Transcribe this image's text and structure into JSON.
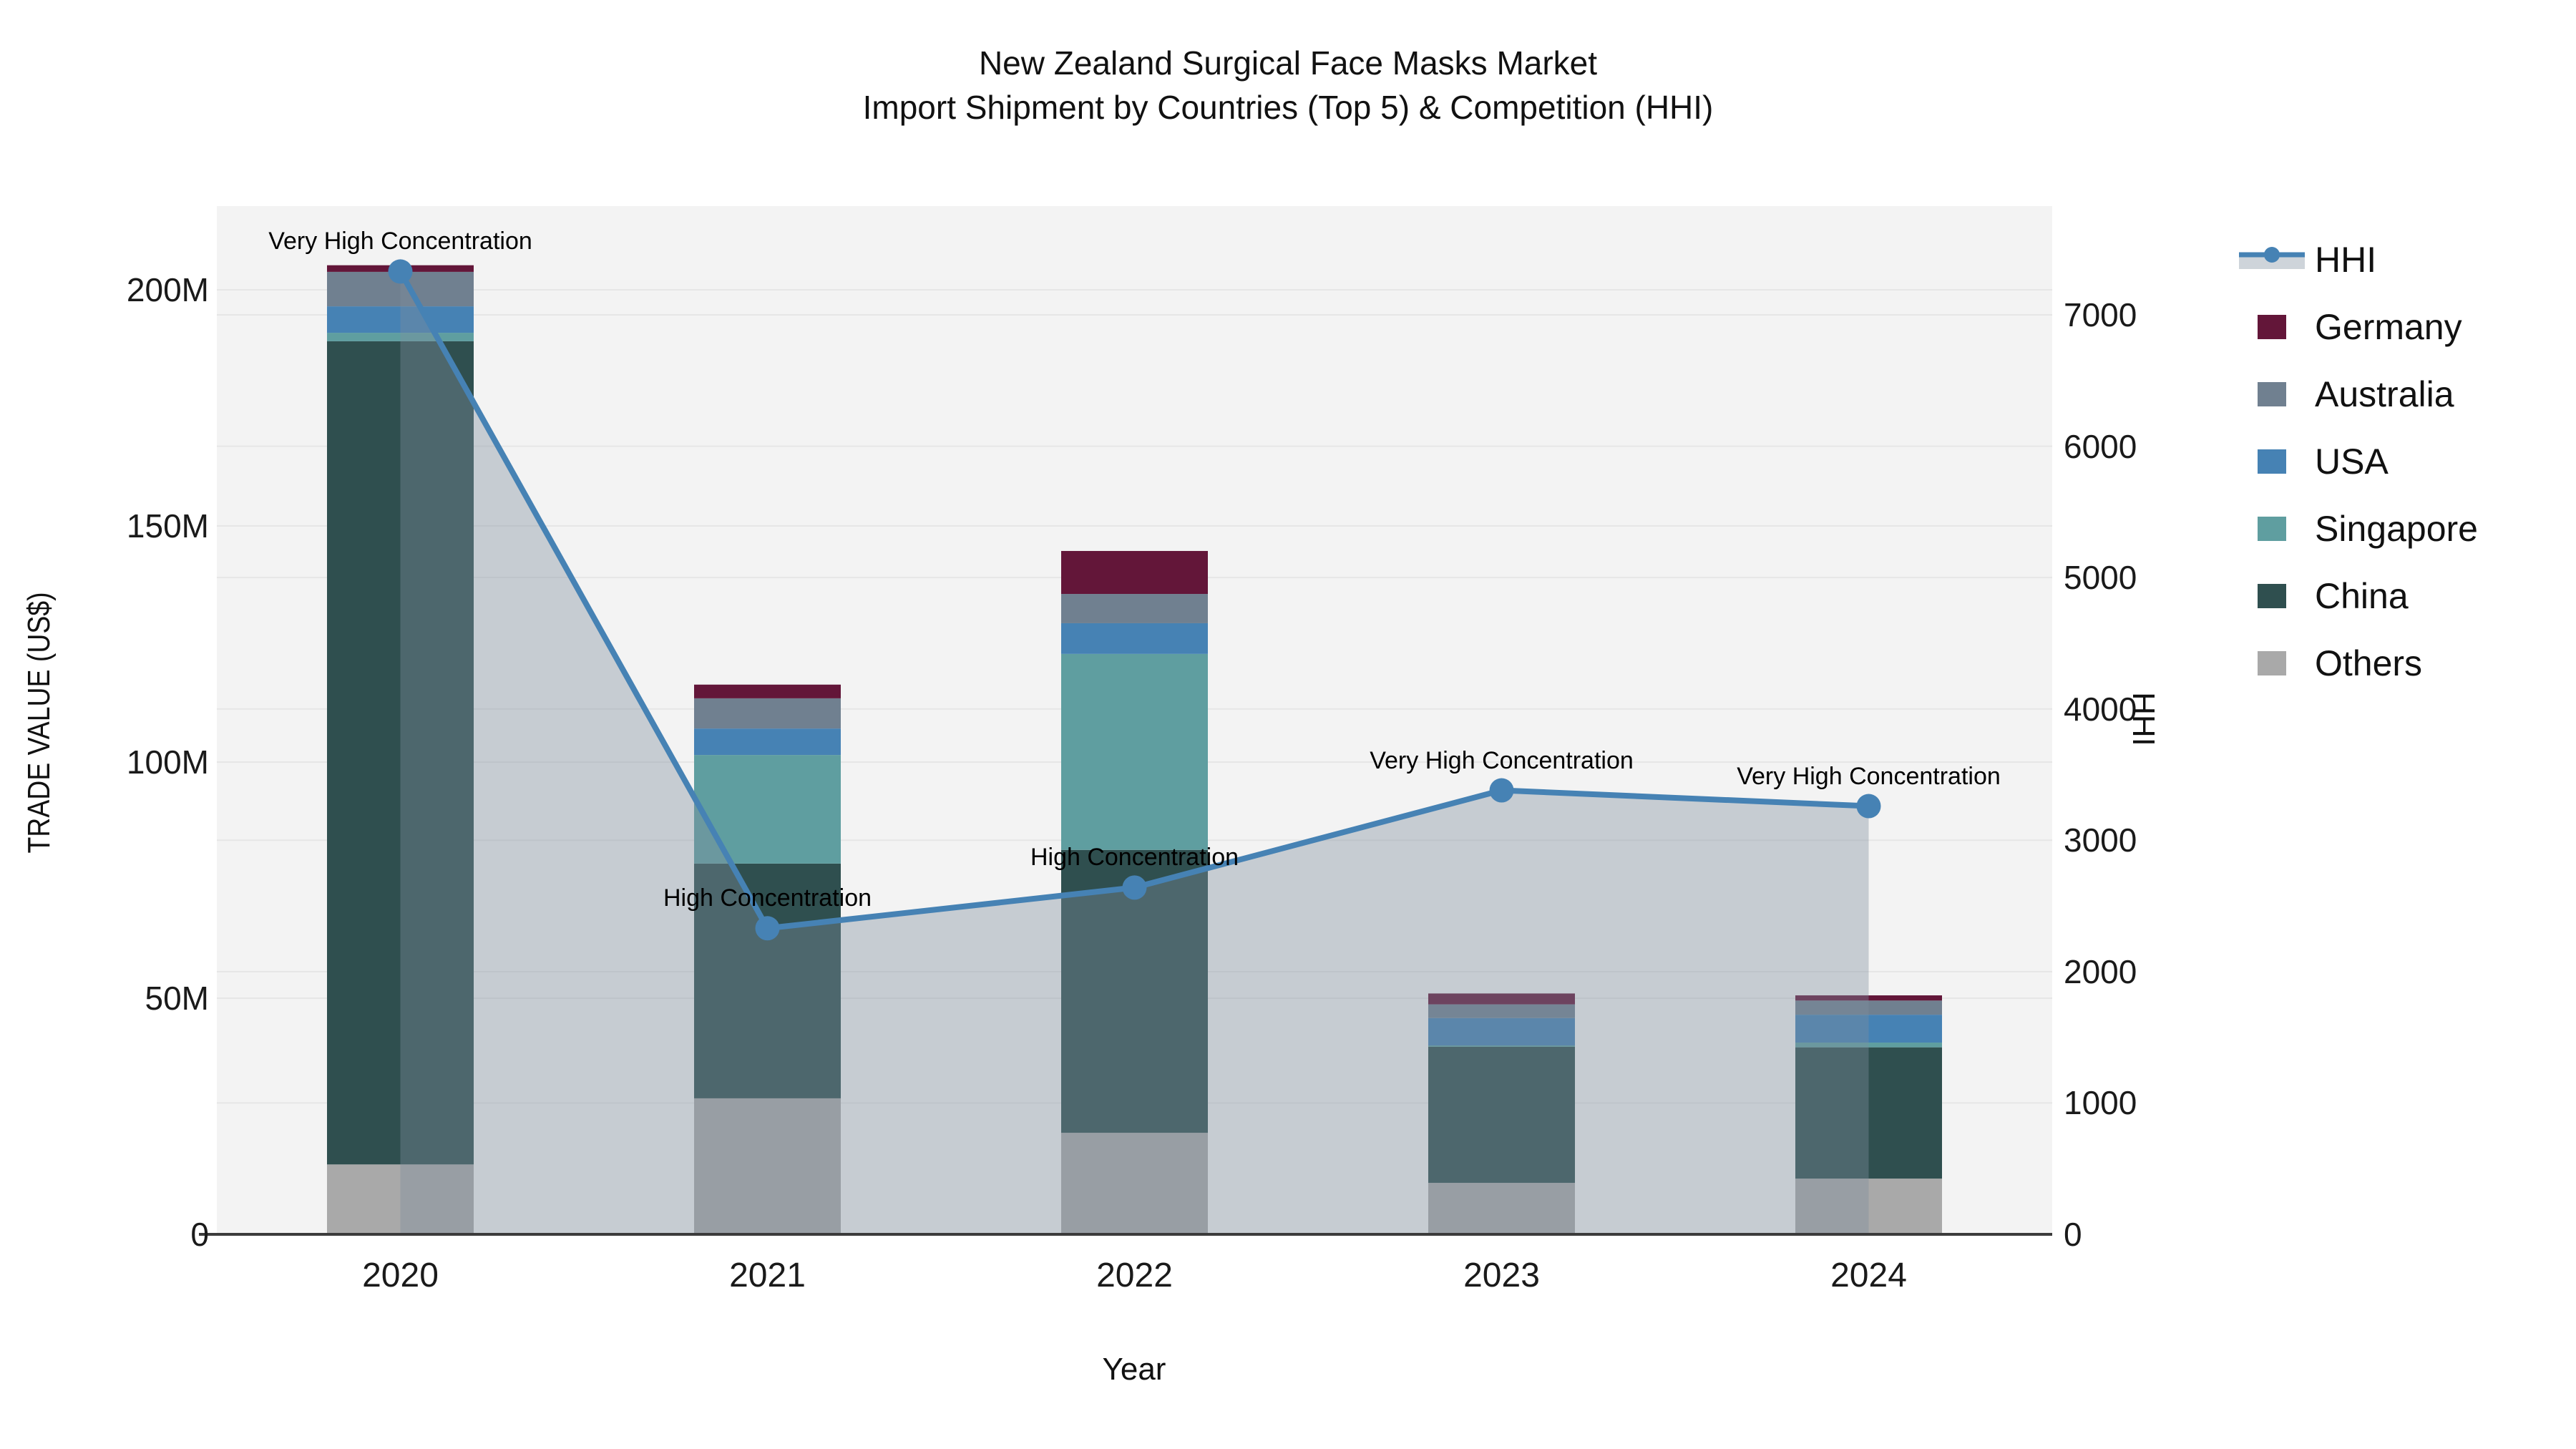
{
  "title": {
    "line1": "New Zealand Surgical Face Masks Market",
    "line2": "Import Shipment by Countries (Top 5) & Competition (HHI)"
  },
  "chart_data": {
    "type": "bar",
    "subtype": "stacked-bars-with-line-overlay",
    "categories": [
      "2020",
      "2021",
      "2022",
      "2023",
      "2024"
    ],
    "x_label": "Year",
    "y_left": {
      "label": "TRADE VALUE (US$)",
      "unit": "M US$",
      "tick_labels": [
        "0",
        "50M",
        "100M",
        "150M",
        "200M"
      ],
      "tick_values": [
        0,
        50,
        100,
        150,
        200
      ],
      "range": [
        0,
        217
      ]
    },
    "y_right": {
      "label": "HHI",
      "tick_labels": [
        "0",
        "1000",
        "2000",
        "3000",
        "4000",
        "5000",
        "6000",
        "7000"
      ],
      "tick_values": [
        0,
        1000,
        2000,
        3000,
        4000,
        5000,
        6000,
        7000
      ],
      "range": [
        0,
        7830
      ]
    },
    "series": [
      {
        "name": "Others",
        "color": "#a9a9a9",
        "values": [
          14.8,
          28.8,
          21.5,
          10.9,
          11.8
        ]
      },
      {
        "name": "China",
        "color": "#2f4f4f",
        "values": [
          174.3,
          49.7,
          59.9,
          28.8,
          27.8
        ]
      },
      {
        "name": "Singapore",
        "color": "#5f9ea0",
        "values": [
          1.8,
          23.0,
          41.5,
          0.3,
          1.0
        ]
      },
      {
        "name": "USA",
        "color": "#4682b4",
        "values": [
          5.6,
          5.6,
          6.5,
          5.8,
          5.9
        ]
      },
      {
        "name": "Australia",
        "color": "#708090",
        "values": [
          7.3,
          6.4,
          6.2,
          2.9,
          3.0
        ]
      },
      {
        "name": "Germany",
        "color": "#631639",
        "values": [
          1.4,
          2.9,
          9.1,
          2.3,
          1.1
        ]
      }
    ],
    "bar_totals": [
      205.2,
      116.4,
      144.7,
      51.0,
      50.6
    ],
    "hhi_line": {
      "name": "HHI",
      "color": "#4682b4",
      "area_fill": "rgba(127,141,158,0.38)",
      "values": [
        7330,
        2330,
        2640,
        3380,
        3260
      ]
    },
    "annotations": [
      "Very High Concentration",
      "High Concentration",
      "High Concentration",
      "Very High Concentration",
      "Very High Concentration"
    ],
    "legend": [
      {
        "label": "HHI",
        "type": "line",
        "color": "#4682b4"
      },
      {
        "label": "Germany",
        "type": "swatch",
        "color": "#631639"
      },
      {
        "label": "Australia",
        "type": "swatch",
        "color": "#708090"
      },
      {
        "label": "USA",
        "type": "swatch",
        "color": "#4682b4"
      },
      {
        "label": "Singapore",
        "type": "swatch",
        "color": "#5f9ea0"
      },
      {
        "label": "China",
        "type": "swatch",
        "color": "#2f4f4f"
      },
      {
        "label": "Others",
        "type": "swatch",
        "color": "#a9a9a9"
      }
    ],
    "plot_background": "#f3f3f3",
    "gridline_color": "#e6e6e6",
    "axis_line_color": "#3b3b3b",
    "grid": "on",
    "legend_position": "right"
  }
}
